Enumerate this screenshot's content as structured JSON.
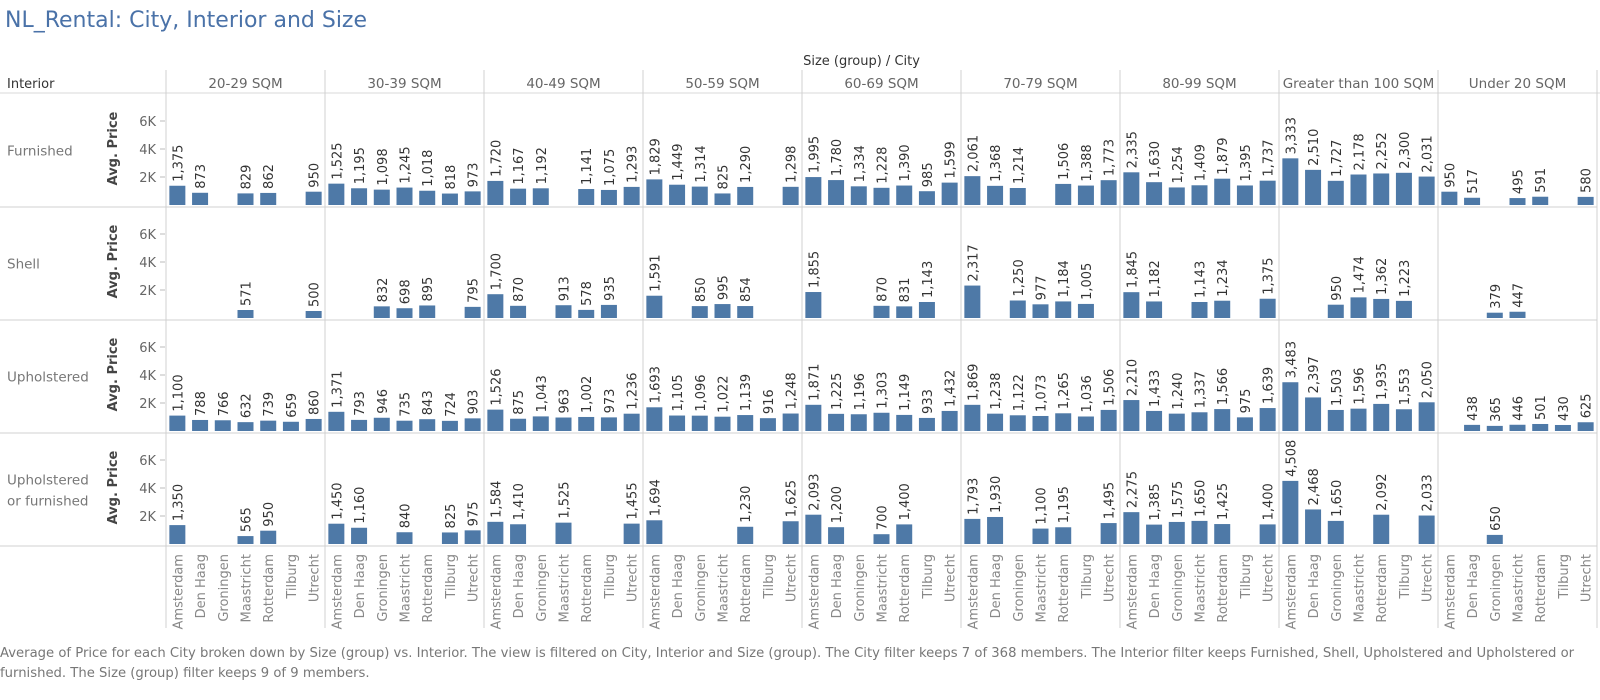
{
  "title": "NL_Rental: City, Interior and Size",
  "caption": "Average of Price for each City broken down by Size (group) vs. Interior. The view is filtered on City, Interior and Size (group). The City filter keeps 7 of 368 members. The Interior filter keeps Furnished, Shell, Upholstered and Upholstered or furnished. The Size (group) filter keeps 9 of 9 members.",
  "colors": {
    "bar": "#4e79a7",
    "title": "#4a72a8"
  },
  "chart_data": {
    "type": "bar",
    "column_header": "Size (group)  /  City",
    "row_header": "Interior",
    "ylabel": "Avg. Price",
    "y_ticks": [
      "2K",
      "4K",
      "6K"
    ],
    "ylim": [
      0,
      7500
    ],
    "grid": false,
    "cities": [
      "Amsterdam",
      "Den Haag",
      "Groningen",
      "Maastricht",
      "Rotterdam",
      "Tilburg",
      "Utrecht"
    ],
    "size_groups": [
      "20-29 SQM",
      "30-39 SQM",
      "40-49 SQM",
      "50-59 SQM",
      "60-69 SQM",
      "70-79 SQM",
      "80-99 SQM",
      "Greater than 100 SQM",
      "Under 20 SQM"
    ],
    "interiors": [
      {
        "label_lines": [
          "Furnished"
        ],
        "values": [
          [
            1375,
            873,
            null,
            829,
            862,
            null,
            950
          ],
          [
            1525,
            1195,
            1098,
            1245,
            1018,
            818,
            973
          ],
          [
            1720,
            1167,
            1192,
            null,
            1141,
            1075,
            1293
          ],
          [
            1829,
            1449,
            1314,
            825,
            1290,
            null,
            1298
          ],
          [
            1995,
            1780,
            1334,
            1228,
            1390,
            985,
            1599
          ],
          [
            2061,
            1368,
            1214,
            null,
            1506,
            1388,
            1773
          ],
          [
            2335,
            1630,
            1254,
            1409,
            1879,
            1395,
            1737
          ],
          [
            3333,
            2510,
            1727,
            2178,
            2252,
            2300,
            2031
          ],
          [
            950,
            517,
            null,
            495,
            591,
            null,
            580
          ]
        ]
      },
      {
        "label_lines": [
          "Shell"
        ],
        "values": [
          [
            null,
            null,
            null,
            571,
            null,
            null,
            500
          ],
          [
            null,
            null,
            832,
            698,
            895,
            null,
            795
          ],
          [
            1700,
            870,
            null,
            913,
            578,
            935,
            null
          ],
          [
            1591,
            null,
            850,
            995,
            854,
            null,
            null
          ],
          [
            1855,
            null,
            null,
            870,
            831,
            1143,
            null
          ],
          [
            2317,
            null,
            1250,
            977,
            1184,
            1005,
            null
          ],
          [
            1845,
            1182,
            null,
            1143,
            1234,
            null,
            1375
          ],
          [
            null,
            null,
            950,
            1474,
            1362,
            1223,
            null
          ],
          [
            null,
            null,
            379,
            447,
            null,
            null,
            null
          ]
        ]
      },
      {
        "label_lines": [
          "Upholstered"
        ],
        "values": [
          [
            1100,
            788,
            766,
            632,
            739,
            659,
            860
          ],
          [
            1371,
            793,
            946,
            735,
            843,
            724,
            903
          ],
          [
            1526,
            875,
            1043,
            963,
            1002,
            973,
            1236
          ],
          [
            1693,
            1105,
            1096,
            1022,
            1139,
            916,
            1248
          ],
          [
            1871,
            1225,
            1196,
            1303,
            1149,
            933,
            1432
          ],
          [
            1869,
            1238,
            1122,
            1073,
            1265,
            1036,
            1506
          ],
          [
            2210,
            1433,
            1240,
            1337,
            1566,
            975,
            1639
          ],
          [
            3483,
            2397,
            1503,
            1596,
            1935,
            1553,
            2050
          ],
          [
            null,
            438,
            365,
            446,
            501,
            430,
            625
          ]
        ]
      },
      {
        "label_lines": [
          "Upholstered",
          "or furnished"
        ],
        "values": [
          [
            1350,
            null,
            null,
            565,
            950,
            null,
            null
          ],
          [
            1450,
            1160,
            null,
            840,
            null,
            825,
            975
          ],
          [
            1584,
            1410,
            null,
            1525,
            null,
            null,
            1455
          ],
          [
            1694,
            null,
            null,
            null,
            1230,
            null,
            1625
          ],
          [
            2093,
            1200,
            null,
            700,
            1400,
            null,
            null
          ],
          [
            1793,
            1930,
            null,
            1100,
            1195,
            null,
            1495
          ],
          [
            2275,
            1385,
            1575,
            1650,
            1425,
            null,
            1400
          ],
          [
            4508,
            2468,
            1650,
            null,
            2092,
            null,
            2033
          ],
          [
            null,
            null,
            650,
            null,
            null,
            null,
            null
          ]
        ]
      }
    ]
  }
}
